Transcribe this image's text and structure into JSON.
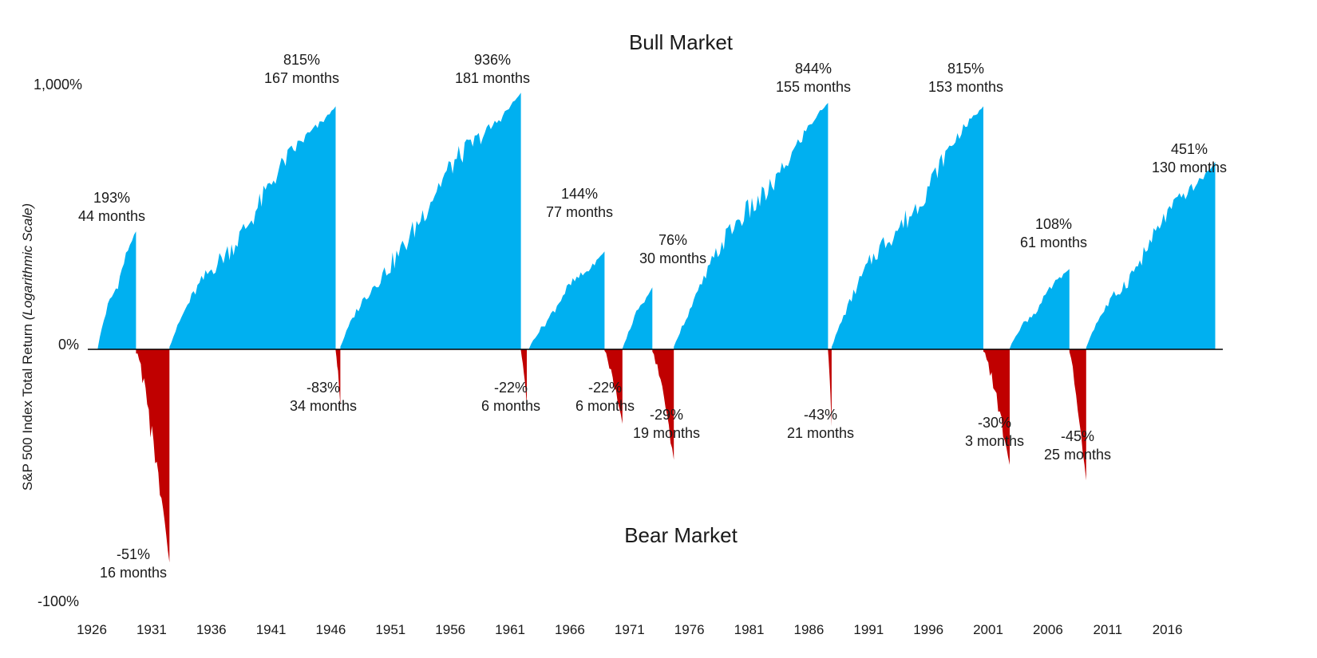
{
  "chart_data": {
    "type": "area",
    "title_bull": "Bull Market",
    "title_bear": "Bear Market",
    "ylabel_main": "S&P 500 Index Total Return ",
    "ylabel_scale": "(Logarithmic Scale)",
    "y_ticks": [
      "1,000%",
      "0%",
      "-100%"
    ],
    "x_ticks": [
      "1926",
      "1931",
      "1936",
      "1941",
      "1946",
      "1951",
      "1956",
      "1961",
      "1966",
      "1971",
      "1976",
      "1981",
      "1986",
      "1991",
      "1996",
      "2001",
      "2006",
      "2011",
      "2016"
    ],
    "xlim": [
      1926,
      2020.5
    ],
    "colors": {
      "bull": "#00b0f0",
      "bear": "#c00000",
      "bull_title": "#1f5f86",
      "bear_title": "#c00000"
    },
    "bull_markets": [
      {
        "start": 1926.5,
        "end": 1929.7,
        "return": "193%",
        "months": "44 months",
        "pct": 193
      },
      {
        "start": 1932.5,
        "end": 1946.4,
        "return": "815%",
        "months": "167 months",
        "pct": 815
      },
      {
        "start": 1946.8,
        "end": 1961.9,
        "return": "936%",
        "months": "181 months",
        "pct": 936
      },
      {
        "start": 1962.6,
        "end": 1968.9,
        "return": "144%",
        "months": "77 months",
        "pct": 144
      },
      {
        "start": 1970.4,
        "end": 1972.9,
        "return": "76%",
        "months": "30 months",
        "pct": 76
      },
      {
        "start": 1974.7,
        "end": 1987.6,
        "return": "844%",
        "months": "155 months",
        "pct": 844
      },
      {
        "start": 1987.9,
        "end": 2000.6,
        "return": "815%",
        "months": "153 months",
        "pct": 815
      },
      {
        "start": 2002.8,
        "end": 2007.8,
        "return": "108%",
        "months": "61 months",
        "pct": 108
      },
      {
        "start": 2009.2,
        "end": 2020.0,
        "return": "451%",
        "months": "130 months",
        "pct": 451
      }
    ],
    "bear_markets": [
      {
        "start": 1929.7,
        "end": 1932.5,
        "return": "-83%",
        "months": "34 months",
        "pct": -83
      },
      {
        "start": 1946.4,
        "end": 1946.8,
        "return": "-22%",
        "months": "6 months",
        "pct": -22
      },
      {
        "start": 1961.9,
        "end": 1962.4,
        "return": "-22%",
        "months": "6 months",
        "pct": -22
      },
      {
        "start": 1968.9,
        "end": 1970.4,
        "return": "-29%",
        "months": "19 months",
        "pct": -29
      },
      {
        "start": 1972.9,
        "end": 1974.7,
        "return": "-43%",
        "months": "21 months",
        "pct": -43
      },
      {
        "start": 1987.6,
        "end": 1987.9,
        "return": "-30%",
        "months": "3 months",
        "pct": -30
      },
      {
        "start": 2000.6,
        "end": 2002.8,
        "return": "-45%",
        "months": "25 months",
        "pct": -45
      },
      {
        "start": 2007.8,
        "end": 2009.2,
        "return": "-51%",
        "months": "16 months",
        "pct": -51
      }
    ]
  }
}
